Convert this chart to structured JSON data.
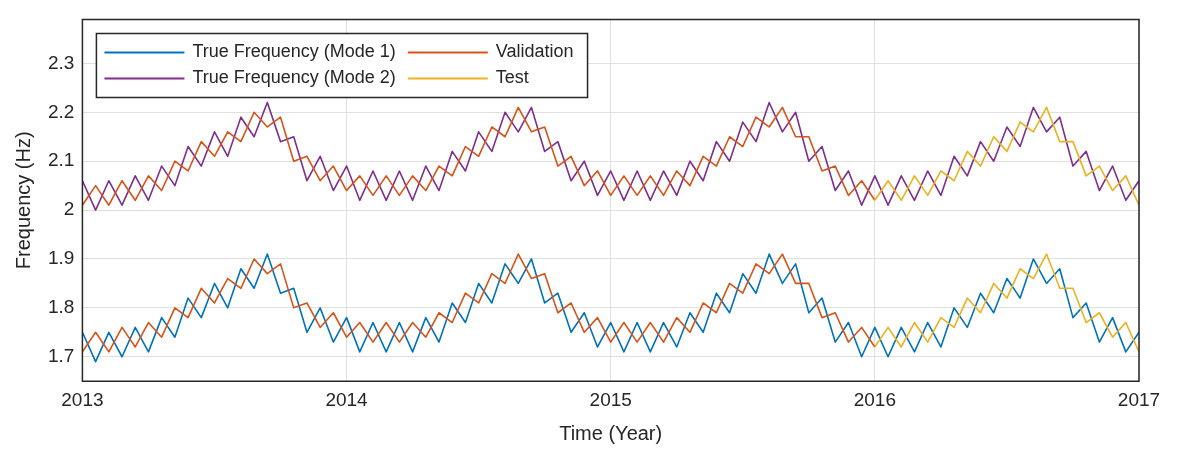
{
  "chart_data": {
    "type": "line",
    "xlabel": "Time (Year)",
    "ylabel": "Frequency (Hz)",
    "x": [
      2013,
      2013.05,
      2013.1,
      2013.15,
      2013.2,
      2013.25,
      2013.3,
      2013.35,
      2013.4,
      2013.45,
      2013.5,
      2013.55,
      2013.6,
      2013.65,
      2013.7,
      2013.75,
      2013.8,
      2013.85,
      2013.9,
      2013.95,
      2014,
      2014.05,
      2014.1,
      2014.15,
      2014.2,
      2014.25,
      2014.3,
      2014.35,
      2014.4,
      2014.45,
      2014.5,
      2014.55,
      2014.6,
      2014.65,
      2014.7,
      2014.75,
      2014.8,
      2014.85,
      2014.9,
      2014.95,
      2015,
      2015.05,
      2015.1,
      2015.15,
      2015.2,
      2015.25,
      2015.3,
      2015.35,
      2015.4,
      2015.45,
      2015.5,
      2015.55,
      2015.6,
      2015.65,
      2015.7,
      2015.75,
      2015.8,
      2015.85,
      2015.9,
      2015.95,
      2016,
      2016.05,
      2016.1,
      2016.15,
      2016.2,
      2016.25,
      2016.3,
      2016.35,
      2016.4,
      2016.45,
      2016.5,
      2016.55,
      2016.6,
      2016.65,
      2016.7,
      2016.75,
      2016.8,
      2016.85,
      2016.9,
      2016.95,
      2017
    ],
    "series": [
      {
        "name": "True Frequency (Mode 1)",
        "color": "#0072bd",
        "values": [
          1.75,
          1.69,
          1.75,
          1.7,
          1.76,
          1.71,
          1.78,
          1.74,
          1.82,
          1.78,
          1.85,
          1.8,
          1.88,
          1.84,
          1.91,
          1.83,
          1.84,
          1.75,
          1.8,
          1.73,
          1.78,
          1.71,
          1.77,
          1.71,
          1.77,
          1.71,
          1.78,
          1.73,
          1.81,
          1.77,
          1.85,
          1.81,
          1.89,
          1.85,
          1.9,
          1.81,
          1.83,
          1.75,
          1.79,
          1.72,
          1.77,
          1.71,
          1.77,
          1.71,
          1.77,
          1.72,
          1.79,
          1.75,
          1.83,
          1.79,
          1.87,
          1.83,
          1.91,
          1.85,
          1.89,
          1.79,
          1.82,
          1.73,
          1.77,
          1.7,
          1.76,
          1.7,
          1.76,
          1.71,
          1.77,
          1.72,
          1.8,
          1.76,
          1.83,
          1.79,
          1.86,
          1.82,
          1.9,
          1.85,
          1.88,
          1.78,
          1.81,
          1.73,
          1.78,
          1.71,
          1.75
        ]
      },
      {
        "name": "True Frequency (Mode 2)",
        "color": "#7e2f8e",
        "values": [
          2.06,
          2.0,
          2.06,
          2.01,
          2.07,
          2.02,
          2.09,
          2.05,
          2.13,
          2.09,
          2.16,
          2.11,
          2.19,
          2.15,
          2.22,
          2.14,
          2.15,
          2.06,
          2.11,
          2.04,
          2.09,
          2.02,
          2.08,
          2.02,
          2.08,
          2.02,
          2.09,
          2.04,
          2.12,
          2.08,
          2.16,
          2.12,
          2.2,
          2.16,
          2.21,
          2.12,
          2.14,
          2.06,
          2.1,
          2.03,
          2.08,
          2.02,
          2.08,
          2.02,
          2.08,
          2.03,
          2.1,
          2.06,
          2.14,
          2.1,
          2.18,
          2.14,
          2.22,
          2.16,
          2.2,
          2.1,
          2.13,
          2.04,
          2.08,
          2.01,
          2.07,
          2.01,
          2.07,
          2.02,
          2.08,
          2.03,
          2.11,
          2.07,
          2.14,
          2.1,
          2.17,
          2.13,
          2.21,
          2.16,
          2.19,
          2.09,
          2.12,
          2.04,
          2.09,
          2.02,
          2.06
        ]
      },
      {
        "name": "Validation",
        "color": "#d95319",
        "x": [
          2013,
          2013.05,
          2013.1,
          2013.15,
          2013.2,
          2013.25,
          2013.3,
          2013.35,
          2013.4,
          2013.45,
          2013.5,
          2013.55,
          2013.6,
          2013.65,
          2013.7,
          2013.75,
          2013.8,
          2013.85,
          2013.9,
          2013.95,
          2014,
          2014.05,
          2014.1,
          2014.15,
          2014.2,
          2014.25,
          2014.3,
          2014.35,
          2014.4,
          2014.45,
          2014.5,
          2014.55,
          2014.6,
          2014.65,
          2014.7,
          2014.75,
          2014.8,
          2014.85,
          2014.9,
          2014.95,
          2015,
          2015.05,
          2015.1,
          2015.15,
          2015.2,
          2015.25,
          2015.3,
          2015.35,
          2015.4,
          2015.45,
          2015.5,
          2015.55,
          2015.6,
          2015.65,
          2015.7,
          2015.75,
          2015.8,
          2015.85,
          2015.9,
          2015.95,
          2016,
          2013,
          2013.05,
          2013.1,
          2013.15,
          2013.2,
          2013.25,
          2013.3,
          2013.35,
          2013.4,
          2013.45,
          2013.5,
          2013.55,
          2013.6,
          2013.65,
          2013.7,
          2013.75,
          2013.8,
          2013.85,
          2013.9,
          2013.95,
          2014,
          2014.05,
          2014.1,
          2014.15,
          2014.2,
          2014.25,
          2014.3,
          2014.35,
          2014.4,
          2014.45,
          2014.5,
          2014.55,
          2014.6,
          2014.65,
          2014.7,
          2014.75,
          2014.8,
          2014.85,
          2014.9,
          2014.95,
          2015,
          2015.05,
          2015.1,
          2015.15,
          2015.2,
          2015.25,
          2015.3,
          2015.35,
          2015.4,
          2015.45,
          2015.5,
          2015.55,
          2015.6,
          2015.65,
          2015.7,
          2015.75,
          2015.8,
          2015.85,
          2015.9,
          2015.95,
          2016
        ],
        "values": [
          2.01,
          2.05,
          2.01,
          2.06,
          2.02,
          2.07,
          2.04,
          2.1,
          2.08,
          2.14,
          2.11,
          2.16,
          2.14,
          2.2,
          2.17,
          2.19,
          2.1,
          2.11,
          2.06,
          2.09,
          2.04,
          2.07,
          2.03,
          2.07,
          2.03,
          2.07,
          2.04,
          2.09,
          2.07,
          2.13,
          2.11,
          2.17,
          2.15,
          2.21,
          2.16,
          2.17,
          2.09,
          2.11,
          2.05,
          2.08,
          2.03,
          2.07,
          2.03,
          2.07,
          2.03,
          2.08,
          2.05,
          2.11,
          2.09,
          2.15,
          2.13,
          2.19,
          2.17,
          2.21,
          2.15,
          2.15,
          2.08,
          2.09,
          2.03,
          2.06,
          2.02,
          1.71,
          1.75,
          1.71,
          1.76,
          1.72,
          1.77,
          1.74,
          1.8,
          1.78,
          1.84,
          1.81,
          1.86,
          1.84,
          1.9,
          1.87,
          1.89,
          1.8,
          1.81,
          1.76,
          1.79,
          1.74,
          1.77,
          1.73,
          1.77,
          1.73,
          1.77,
          1.74,
          1.79,
          1.77,
          1.83,
          1.81,
          1.87,
          1.85,
          1.91,
          1.86,
          1.87,
          1.79,
          1.81,
          1.75,
          1.78,
          1.73,
          1.77,
          1.73,
          1.77,
          1.73,
          1.78,
          1.75,
          1.81,
          1.79,
          1.85,
          1.83,
          1.89,
          1.87,
          1.91,
          1.85,
          1.85,
          1.78,
          1.79,
          1.73,
          1.76,
          1.72
        ]
      },
      {
        "name": "Test",
        "color": "#edb120",
        "x": [
          2016,
          2016.05,
          2016.1,
          2016.15,
          2016.2,
          2016.25,
          2016.3,
          2016.35,
          2016.4,
          2016.45,
          2016.5,
          2016.55,
          2016.6,
          2016.65,
          2016.7,
          2016.75,
          2016.8,
          2016.85,
          2016.9,
          2016.95,
          2017,
          2016,
          2016.05,
          2016.1,
          2016.15,
          2016.2,
          2016.25,
          2016.3,
          2016.35,
          2016.4,
          2016.45,
          2016.5,
          2016.55,
          2016.6,
          2016.65,
          2016.7,
          2016.75,
          2016.8,
          2016.85,
          2016.9,
          2016.95,
          2017
        ],
        "values": [
          2.02,
          2.06,
          2.02,
          2.07,
          2.03,
          2.08,
          2.06,
          2.12,
          2.09,
          2.15,
          2.12,
          2.18,
          2.16,
          2.21,
          2.14,
          2.14,
          2.07,
          2.09,
          2.04,
          2.07,
          2.01,
          1.72,
          1.76,
          1.72,
          1.77,
          1.73,
          1.78,
          1.76,
          1.82,
          1.79,
          1.85,
          1.82,
          1.88,
          1.86,
          1.91,
          1.84,
          1.84,
          1.77,
          1.79,
          1.74,
          1.77,
          1.71
        ]
      }
    ],
    "xlim": [
      2013,
      2017
    ],
    "xticks": [
      2013,
      2014,
      2015,
      2016,
      2017
    ],
    "ylim": [
      1.65,
      2.39
    ],
    "yticks": [
      1.7,
      1.8,
      1.9,
      2,
      2.1,
      2.2,
      2.3
    ],
    "grid": true,
    "legend": "top left",
    "marker": "none",
    "line_style": "solid"
  }
}
